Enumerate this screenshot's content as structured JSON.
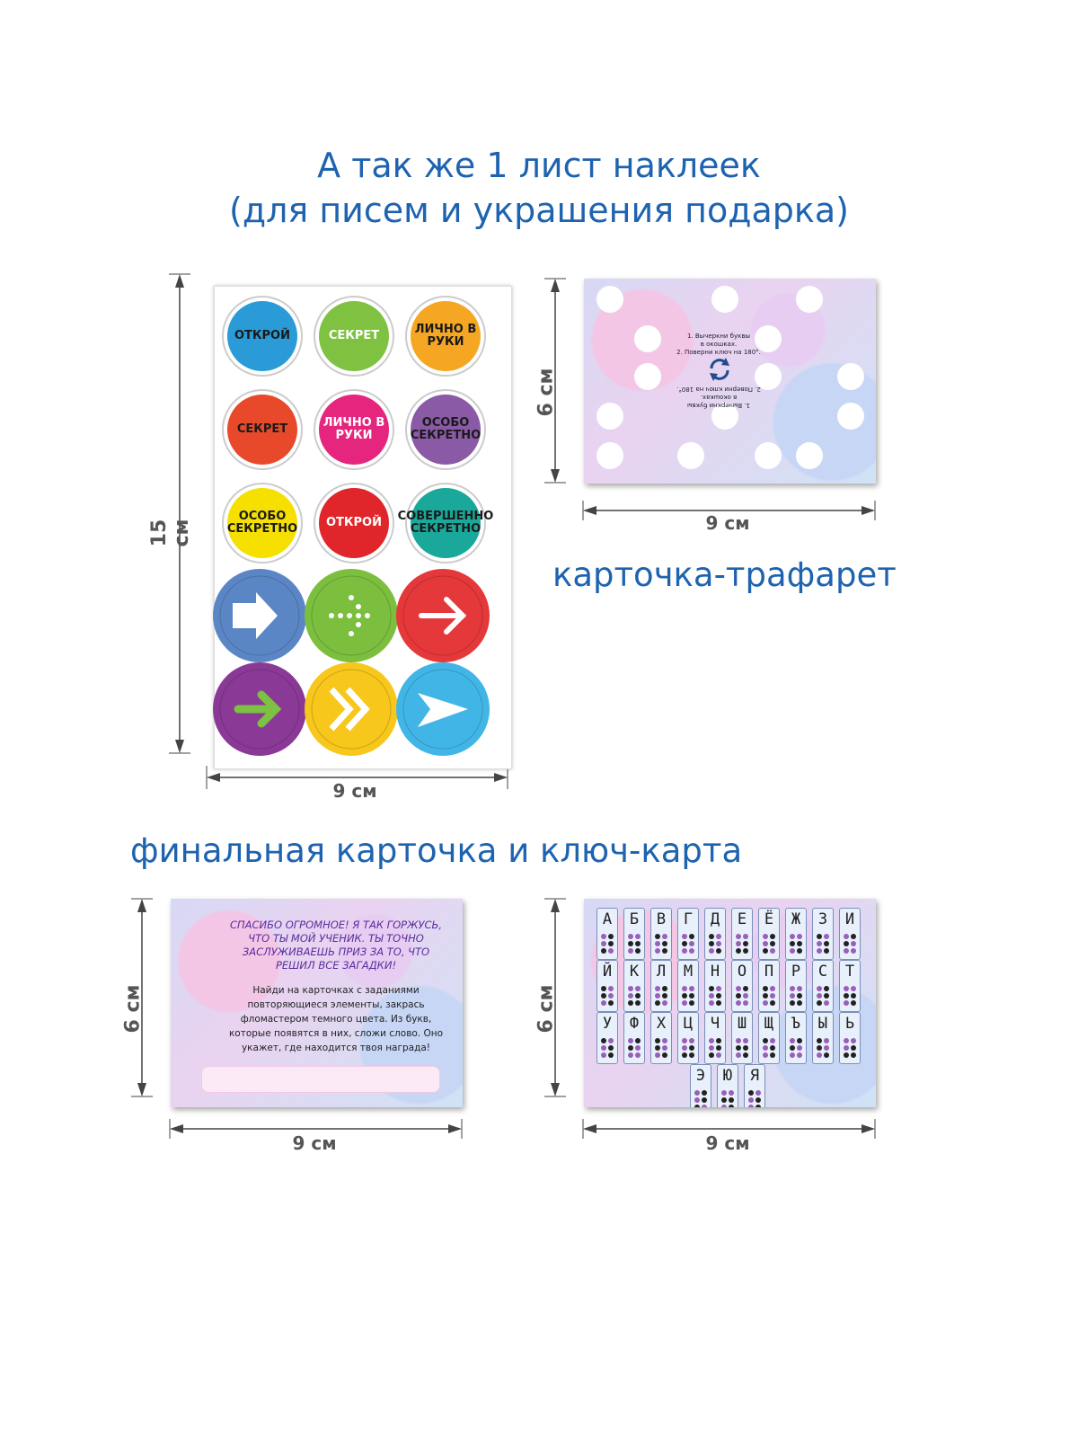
{
  "heading": {
    "line1": "А так же 1 лист наклеек",
    "line2": "(для писем и украшения подарка)"
  },
  "sticker_sheet": {
    "height_label": "15 см",
    "width_label": "9 см",
    "stickers": [
      {
        "text": "ОТКРОЙ",
        "color": "#2a9bd6",
        "text_color": "#1a1a1a"
      },
      {
        "text": "СЕКРЕТ",
        "color": "#7fc242",
        "text_color": "#ffffff"
      },
      {
        "text": "ЛИЧНО В РУКИ",
        "color": "#f5a623",
        "text_color": "#1a1a1a"
      },
      {
        "text": "СЕКРЕТ",
        "color": "#e8492a",
        "text_color": "#1a1a1a"
      },
      {
        "text": "ЛИЧНО В РУКИ",
        "color": "#e6267e",
        "text_color": "#ffffff"
      },
      {
        "text": "ОСОБО СЕКРЕТНО",
        "color": "#8a5aa6",
        "text_color": "#1a1a1a"
      },
      {
        "text": "ОСОБО СЕКРЕТНО",
        "color": "#f5e000",
        "text_color": "#1a1a1a"
      },
      {
        "text": "ОТКРОЙ",
        "color": "#e0262b",
        "text_color": "#ffffff"
      },
      {
        "text": "СОВЕРШЕННО СЕКРЕТНО",
        "color": "#1aa89b",
        "text_color": "#1a1a1a"
      }
    ],
    "arrow_circles": [
      {
        "color": "#5b86c6",
        "icon": "block-arrow-right-icon"
      },
      {
        "color": "#7cbf3f",
        "icon": "dotted-arrow-right-icon"
      },
      {
        "color": "#e5383b",
        "icon": "line-arrow-right-icon"
      },
      {
        "color": "#8a3a96",
        "icon": "green-arrow-right-icon"
      },
      {
        "color": "#f7c71c",
        "icon": "double-chevron-right-icon"
      },
      {
        "color": "#41b6e6",
        "icon": "paper-plane-arrow-icon"
      }
    ]
  },
  "stencil_card": {
    "height_label": "6 см",
    "width_label": "9 см",
    "caption": "карточка-трафарет",
    "instruction_lines": [
      "1. Вычеркни буквы",
      "в окошках.",
      "2. Поверни ключ на 180°."
    ]
  },
  "section2_heading": "финальная карточка  и  ключ-карта",
  "final_card": {
    "height_label": "6 см",
    "width_label": "9 см",
    "title_lines": [
      "СПАСИБО ОГРОМНОЕ! Я ТАК ГОРЖУСЬ,",
      "ЧТО ТЫ МОЙ УЧЕНИК. ТЫ ТОЧНО",
      "ЗАСЛУЖИВАЕШЬ ПРИЗ ЗА ТО, ЧТО",
      "РЕШИЛ ВСЕ ЗАГАДКИ!"
    ],
    "body_lines": [
      "Найди на карточках с заданиями",
      "повторяющиеся элементы, закрась",
      "фломастером темного цвета. Из букв,",
      "которые появятся в них, сложи слово. Оно",
      "укажет, где находится твоя награда!"
    ]
  },
  "key_card": {
    "height_label": "6 см",
    "width_label": "9 см",
    "rows": [
      [
        "А",
        "Б",
        "В",
        "Г",
        "Д",
        "Е",
        "Ё",
        "Ж",
        "З",
        "И"
      ],
      [
        "Й",
        "К",
        "Л",
        "М",
        "Н",
        "О",
        "П",
        "Р",
        "С",
        "Т"
      ],
      [
        "У",
        "Ф",
        "Х",
        "Ц",
        "Ч",
        "Ш",
        "Щ",
        "Ъ",
        "Ы",
        "Ь"
      ],
      [
        "Э",
        "Ю",
        "Я"
      ]
    ]
  }
}
